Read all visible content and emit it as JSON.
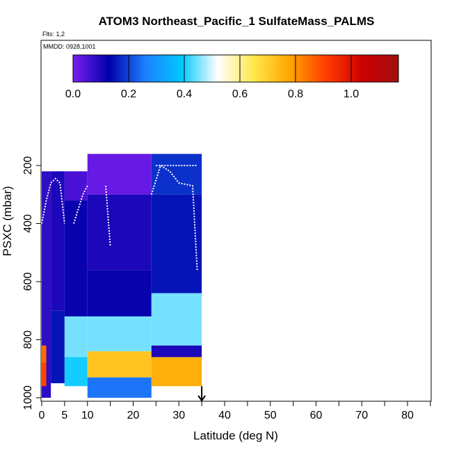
{
  "chart_data": {
    "type": "heatmap",
    "title": "ATOM3 Northeast_Pacific_1 SulfateMass_PALMS",
    "flights_label": "Flts: 1,2",
    "mmdd_label": "MMDD: 0928,1001",
    "xlabel": "Latitude (deg N)",
    "ylabel": "PSXC (mbar)",
    "xlim": [
      0,
      85
    ],
    "ylim": [
      1000,
      0
    ],
    "x_ticks": [
      0,
      5,
      10,
      20,
      30,
      40,
      50,
      60,
      70,
      80
    ],
    "x_tick_labels": [
      "0",
      "5",
      "10",
      "20",
      "30",
      "40",
      "50",
      "60",
      "70",
      "80"
    ],
    "x_minor_ticks": [
      0,
      5,
      10,
      15,
      20,
      25,
      30,
      35,
      40,
      45,
      50,
      55,
      60,
      65,
      70,
      75,
      80,
      85
    ],
    "y_ticks": [
      200,
      400,
      600,
      800,
      1000
    ],
    "y_tick_labels": [
      "200",
      "400",
      "600",
      "800",
      "1000"
    ],
    "colorbar": {
      "min": 0.0,
      "max": 1.17,
      "ticks": [
        0.0,
        0.2,
        0.4,
        0.6,
        0.8,
        1.0
      ],
      "tick_labels": [
        "0.0",
        "0.2",
        "0.4",
        "0.6",
        "0.8",
        "1.0"
      ],
      "colors": [
        "#7a1ef0",
        "#0000aa",
        "#1e7fff",
        "#00c8ff",
        "#ffffff",
        "#ffe84a",
        "#ffa500",
        "#ff3c00",
        "#cc0000",
        "#a01010"
      ]
    },
    "cells": [
      {
        "lat": [
          0,
          2
        ],
        "p": [
          220,
          1000
        ],
        "v": 0.08
      },
      {
        "lat": [
          2,
          5
        ],
        "p": [
          220,
          700
        ],
        "v": 0.1
      },
      {
        "lat": [
          2,
          5
        ],
        "p": [
          700,
          950
        ],
        "v": 0.15
      },
      {
        "lat": [
          0,
          1
        ],
        "p": [
          820,
          880
        ],
        "v": 0.85
      },
      {
        "lat": [
          0,
          1
        ],
        "p": [
          880,
          960
        ],
        "v": 0.9
      },
      {
        "lat": [
          5,
          10
        ],
        "p": [
          220,
          320
        ],
        "v": 0.05
      },
      {
        "lat": [
          5,
          10
        ],
        "p": [
          320,
          720
        ],
        "v": 0.12
      },
      {
        "lat": [
          5,
          10
        ],
        "p": [
          720,
          860
        ],
        "v": 0.45
      },
      {
        "lat": [
          5,
          10
        ],
        "p": [
          860,
          960
        ],
        "v": 0.4
      },
      {
        "lat": [
          10,
          24
        ],
        "p": [
          160,
          300
        ],
        "v": 0.02
      },
      {
        "lat": [
          10,
          24
        ],
        "p": [
          300,
          560
        ],
        "v": 0.1
      },
      {
        "lat": [
          10,
          24
        ],
        "p": [
          560,
          720
        ],
        "v": 0.12
      },
      {
        "lat": [
          10,
          24
        ],
        "p": [
          720,
          840
        ],
        "v": 0.45
      },
      {
        "lat": [
          10,
          24
        ],
        "p": [
          840,
          930
        ],
        "v": 0.72
      },
      {
        "lat": [
          10,
          24
        ],
        "p": [
          930,
          1000
        ],
        "v": 0.25
      },
      {
        "lat": [
          24,
          35
        ],
        "p": [
          160,
          300
        ],
        "v": 0.18
      },
      {
        "lat": [
          24,
          35
        ],
        "p": [
          300,
          640
        ],
        "v": 0.15
      },
      {
        "lat": [
          24,
          35
        ],
        "p": [
          640,
          820
        ],
        "v": 0.45
      },
      {
        "lat": [
          24,
          35
        ],
        "p": [
          820,
          860
        ],
        "v": 0.1
      },
      {
        "lat": [
          24,
          35
        ],
        "p": [
          860,
          960
        ],
        "v": 0.76
      }
    ],
    "flight_tracks": [
      [
        [
          0,
          400
        ],
        [
          1,
          320
        ],
        [
          2,
          260
        ],
        [
          3,
          245
        ],
        [
          4,
          260
        ],
        [
          5,
          400
        ]
      ],
      [
        [
          7,
          400
        ],
        [
          9,
          300
        ],
        [
          10,
          270
        ]
      ],
      [
        [
          14,
          270
        ],
        [
          15,
          480
        ]
      ],
      [
        [
          24,
          300
        ],
        [
          26,
          200
        ],
        [
          28,
          220
        ],
        [
          30,
          260
        ],
        [
          33,
          270
        ],
        [
          34,
          560
        ]
      ],
      [
        [
          25,
          200
        ],
        [
          34,
          200
        ]
      ]
    ],
    "arrow": {
      "lat": 35,
      "p_from": 960,
      "p_to": 1000
    }
  }
}
